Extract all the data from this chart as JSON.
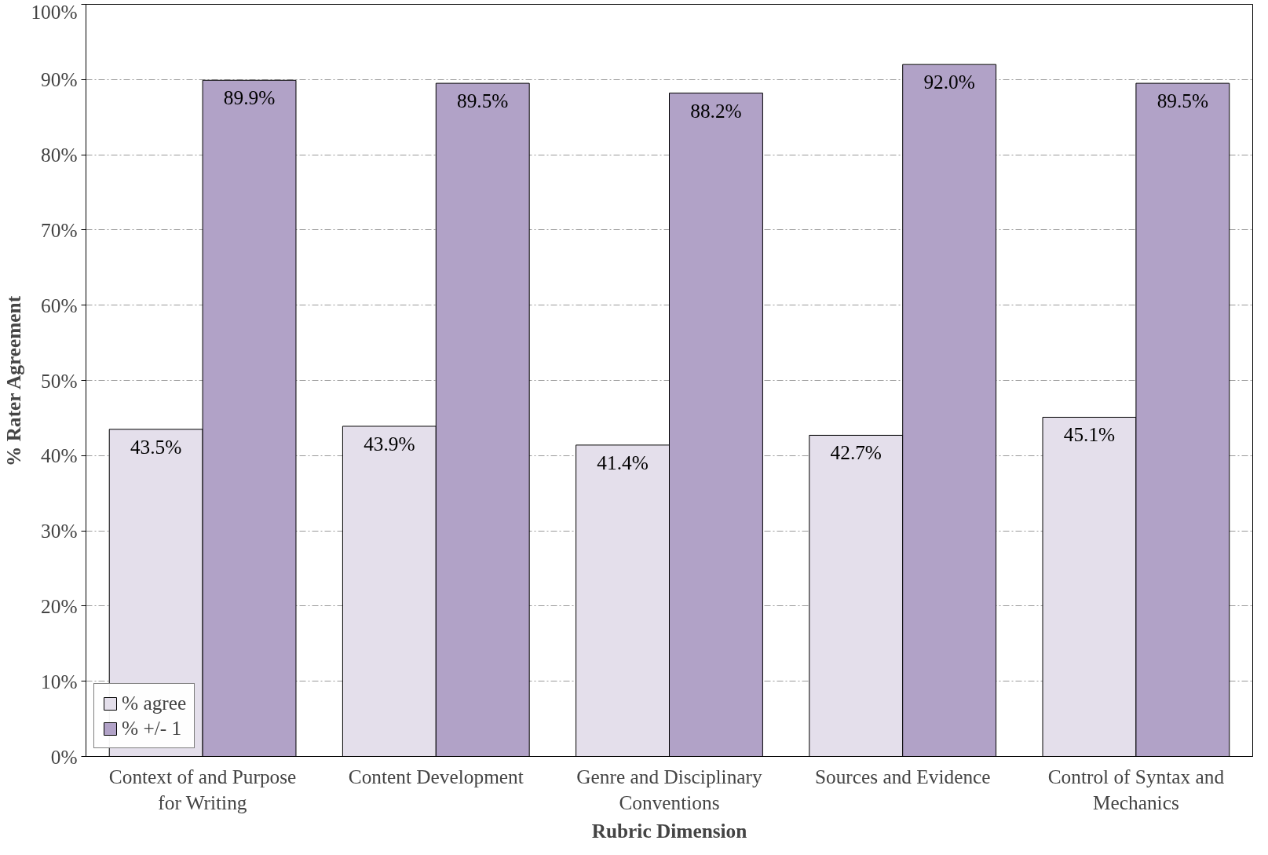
{
  "chart_data": {
    "type": "bar",
    "xlabel": "Rubric Dimension",
    "ylabel": "% Rater Agreement",
    "categories": [
      "Context of and Purpose for Writing",
      "Content Development",
      "Genre and Disciplinary Conventions",
      "Sources and Evidence",
      "Control of Syntax and Mechanics"
    ],
    "series": [
      {
        "name": "% agree",
        "color": "#e4dfeb",
        "values": [
          43.5,
          43.9,
          41.4,
          42.7,
          45.1
        ],
        "value_labels": [
          "43.5%",
          "43.9%",
          "41.4%",
          "42.7%",
          "45.1%"
        ]
      },
      {
        "name": "% +/- 1",
        "color": "#b1a2c7",
        "values": [
          89.9,
          89.5,
          88.2,
          92.0,
          89.5
        ],
        "value_labels": [
          "89.9%",
          "89.5%",
          "88.2%",
          "92.0%",
          "89.5%"
        ]
      }
    ],
    "ylim": [
      0,
      100
    ],
    "yticks": [
      {
        "value": 0,
        "label": "0%"
      },
      {
        "value": 10,
        "label": "10%"
      },
      {
        "value": 20,
        "label": "20%"
      },
      {
        "value": 30,
        "label": "30%"
      },
      {
        "value": 40,
        "label": "40%"
      },
      {
        "value": 50,
        "label": "50%"
      },
      {
        "value": 60,
        "label": "60%"
      },
      {
        "value": 70,
        "label": "70%"
      },
      {
        "value": 80,
        "label": "80%"
      },
      {
        "value": 90,
        "label": "90%"
      },
      {
        "value": 100,
        "label": "100%"
      }
    ],
    "grid": "y",
    "legend": "bottom left"
  }
}
